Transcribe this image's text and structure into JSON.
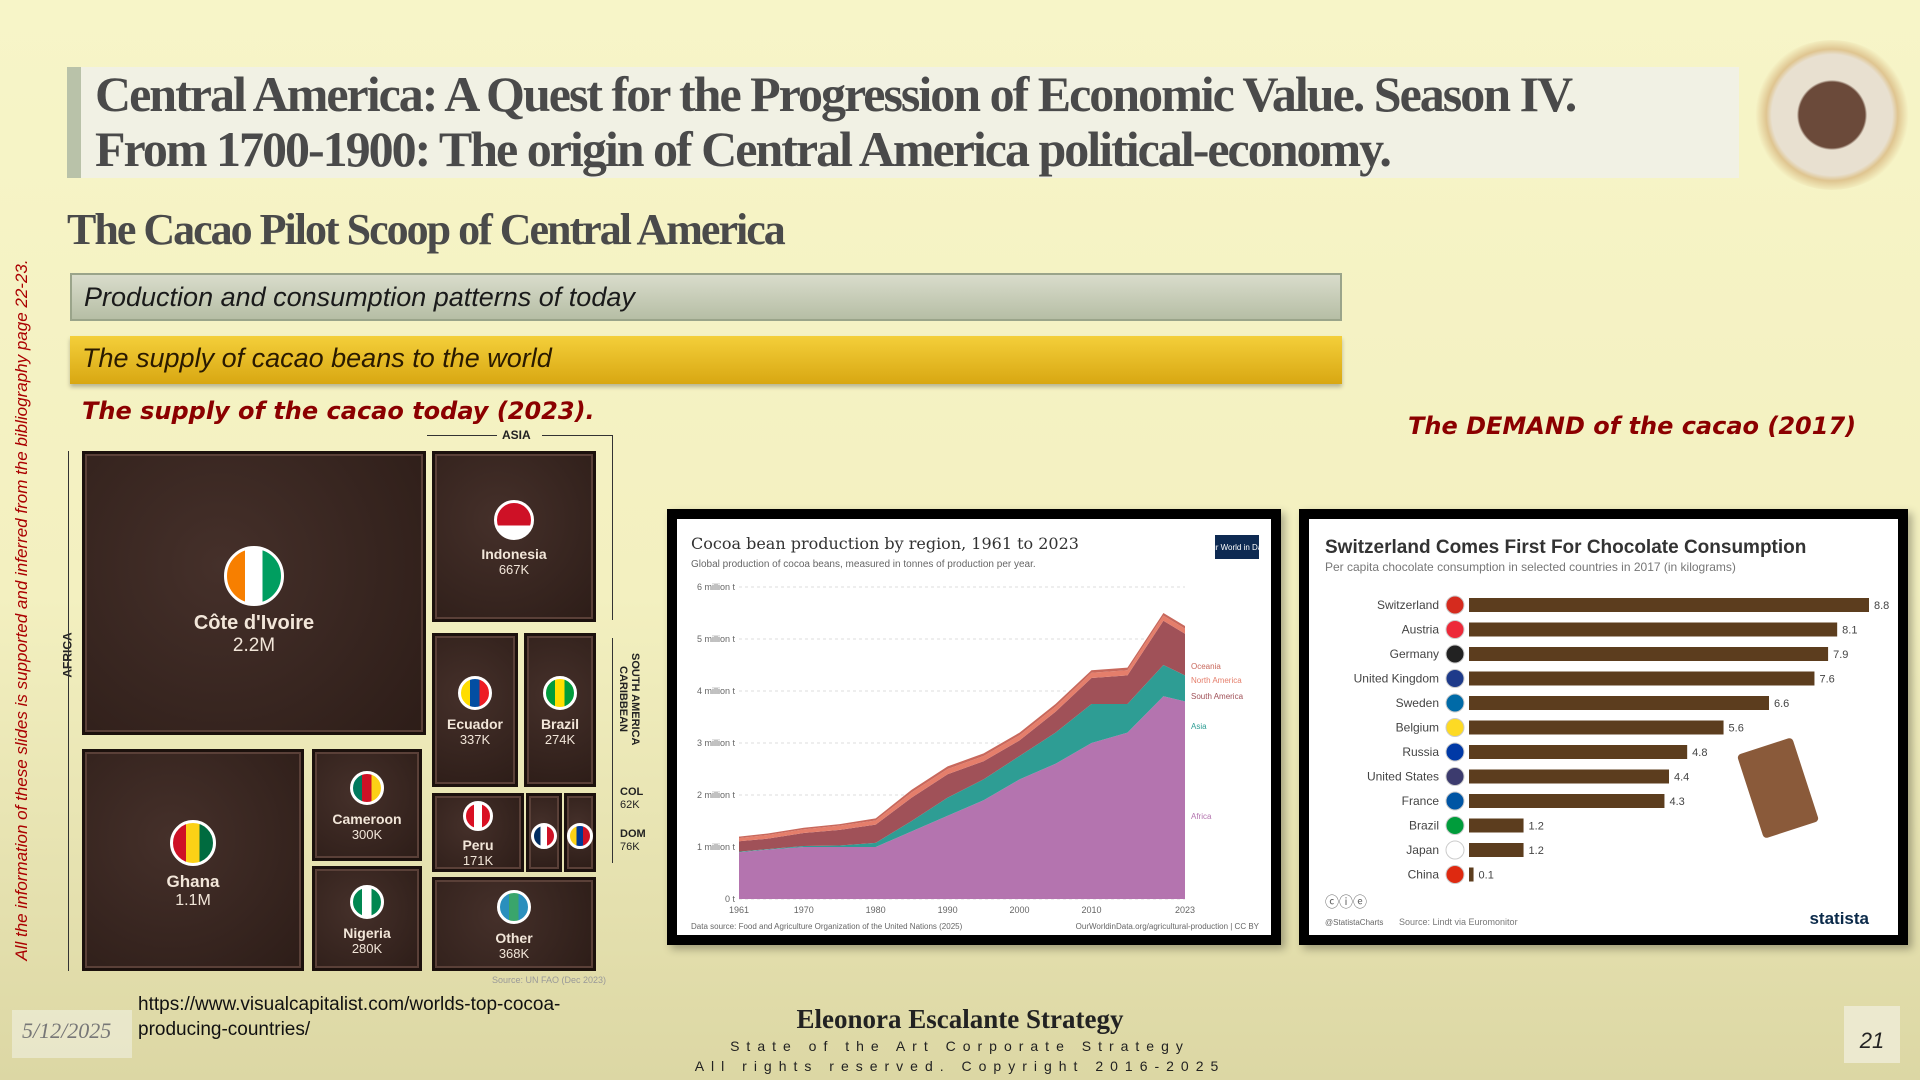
{
  "header": {
    "title_line1": "Central America:  A Quest for the Progression of Economic Value. Season IV.",
    "title_line2": "From 1700-1900: The origin of  Central America political-economy.",
    "subtitle": "The Cacao Pilot Scoop of Central America"
  },
  "bars": {
    "section": "Production and consumption patterns of today",
    "subsection": "The supply of cacao beans to the world"
  },
  "labels": {
    "supply": "The supply of the cacao today (2023).",
    "demand": "The DEMAND of the cacao (2017)"
  },
  "side_note": "All the information of these slides is supported and inferred from the bibliography page 22-23.",
  "treemap": {
    "regions": {
      "asia": "ASIA",
      "africa": "AFRICA",
      "south_america": "SOUTH AMERICA CARIBBEAN"
    },
    "items": [
      {
        "name": "Côte d'Ivoire",
        "value": "2.2M",
        "colors": [
          "#f77f00",
          "#fff",
          "#009e60"
        ]
      },
      {
        "name": "Ghana",
        "value": "1.1M",
        "colors": [
          "#ce1126",
          "#fcd116",
          "#006b3f"
        ]
      },
      {
        "name": "Cameroon",
        "value": "300K",
        "colors": [
          "#007a5e",
          "#ce1126",
          "#fcd116"
        ]
      },
      {
        "name": "Nigeria",
        "value": "280K",
        "colors": [
          "#008751",
          "#fff",
          "#008751"
        ]
      },
      {
        "name": "Indonesia",
        "value": "667K",
        "colors": [
          "#ce1126",
          "#ce1126",
          "#fff"
        ]
      },
      {
        "name": "Ecuador",
        "value": "337K",
        "colors": [
          "#ffdd00",
          "#034ea2",
          "#ed1c24"
        ]
      },
      {
        "name": "Brazil",
        "value": "274K",
        "colors": [
          "#009c3b",
          "#ffdf00",
          "#009c3b"
        ]
      },
      {
        "name": "Peru",
        "value": "171K",
        "colors": [
          "#d91023",
          "#fff",
          "#d91023"
        ]
      },
      {
        "name": "Other",
        "value": "368K",
        "colors": [
          "#2a8fbd",
          "#3aa56b",
          "#2a8fbd"
        ]
      },
      {
        "name": "DOM",
        "value": "76K",
        "colors": [
          "#002d62",
          "#fff",
          "#ce1126"
        ]
      },
      {
        "name": "COL",
        "value": "62K",
        "colors": [
          "#fcd116",
          "#003893",
          "#ce1126"
        ]
      }
    ],
    "source_note": "Source: UN FAO (Dec 2023)"
  },
  "chart_data": [
    {
      "type": "area",
      "title": "Cocoa bean production by region, 1961 to 2023",
      "subtitle": "Global production of cocoa beans, measured in tonnes of production per year.",
      "logo": "Our World in Data",
      "x": [
        1961,
        1965,
        1970,
        1975,
        1980,
        1985,
        1990,
        1995,
        2000,
        2005,
        2010,
        2015,
        2020,
        2023
      ],
      "xticks": [
        "1961",
        "1970",
        "1980",
        "1990",
        "2000",
        "2010",
        "2023"
      ],
      "yticks": [
        "0 t",
        "1 million t",
        "2 million t",
        "3 million t",
        "4 million t",
        "5 million t",
        "6 million t"
      ],
      "ylim": [
        0,
        6
      ],
      "yunit": "million t",
      "series": [
        {
          "name": "Africa",
          "color": "#b474af",
          "values": [
            0.9,
            0.95,
            1.0,
            1.0,
            1.0,
            1.3,
            1.6,
            1.9,
            2.3,
            2.6,
            3.0,
            3.2,
            3.9,
            3.8
          ]
        },
        {
          "name": "Asia",
          "color": "#2e9d94",
          "values": [
            0.01,
            0.01,
            0.02,
            0.03,
            0.08,
            0.2,
            0.35,
            0.4,
            0.45,
            0.6,
            0.75,
            0.55,
            0.6,
            0.5
          ]
        },
        {
          "name": "South America",
          "color": "#a05158",
          "values": [
            0.2,
            0.2,
            0.25,
            0.3,
            0.35,
            0.45,
            0.45,
            0.35,
            0.3,
            0.4,
            0.5,
            0.55,
            0.85,
            0.8
          ]
        },
        {
          "name": "North America",
          "color": "#e57e6b",
          "values": [
            0.06,
            0.07,
            0.07,
            0.08,
            0.08,
            0.1,
            0.1,
            0.1,
            0.1,
            0.1,
            0.1,
            0.1,
            0.1,
            0.1
          ]
        },
        {
          "name": "Oceania",
          "color": "#c8685c",
          "values": [
            0.03,
            0.03,
            0.03,
            0.03,
            0.04,
            0.05,
            0.05,
            0.05,
            0.05,
            0.05,
            0.05,
            0.05,
            0.05,
            0.05
          ]
        }
      ],
      "source": "Data source: Food and Agriculture Organization of the United Nations (2025)",
      "credit": "OurWorldinData.org/agricultural-production | CC BY"
    },
    {
      "type": "bar",
      "title": "Switzerland Comes First For Chocolate Consumption",
      "subtitle": "Per capita chocolate consumption in selected countries in 2017 (in kilograms)",
      "categories": [
        "Switzerland",
        "Austria",
        "Germany",
        "United Kingdom",
        "Sweden",
        "Belgium",
        "Russia",
        "United States",
        "France",
        "Brazil",
        "Japan",
        "China"
      ],
      "values": [
        8.8,
        8.1,
        7.9,
        7.6,
        6.6,
        5.6,
        4.8,
        4.4,
        4.3,
        1.2,
        1.2,
        0.1
      ],
      "bar_color": "#5c3d1e",
      "xlim": [
        0,
        8.8
      ],
      "source": "Source: Lindt via Euromonitor",
      "handle": "@StatistaCharts",
      "brand": "statista"
    }
  ],
  "footer": {
    "url": "https://www.visualcapitalist.com/worlds-top-cocoa-producing-countries/",
    "date": "5/12/2025",
    "company": "Eleonora Escalante Strategy",
    "tagline": "State of the Art Corporate Strategy",
    "copyright": "All rights reserved. Copyright 2016-2025",
    "page": "21"
  }
}
